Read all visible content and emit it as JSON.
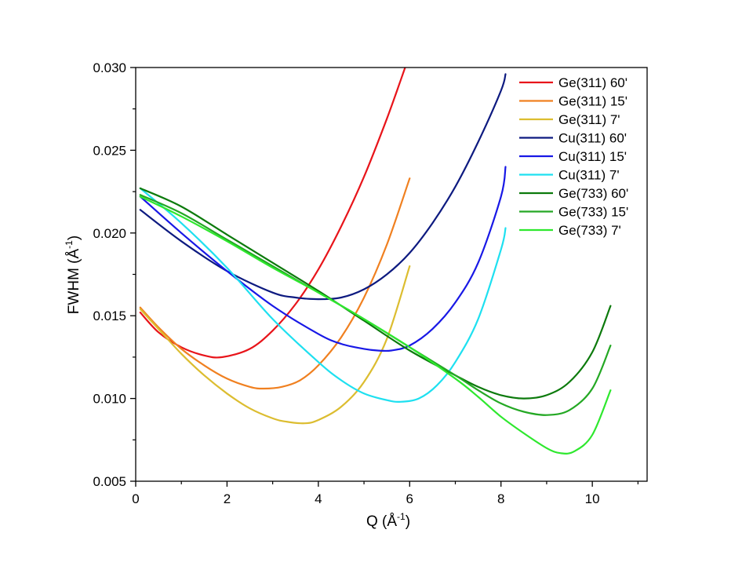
{
  "chart_data": {
    "type": "line",
    "title": "",
    "xlabel": "Q (Å",
    "xlabel_sup": "-1",
    "xlabel_end": ")",
    "ylabel": "FWHM (Å",
    "ylabel_sup": "-1",
    "ylabel_end": ")",
    "xlim": [
      0,
      11.2
    ],
    "ylim": [
      0.005,
      0.03
    ],
    "xticks": [
      0,
      2,
      4,
      6,
      8,
      10
    ],
    "xtick_labels": [
      "0",
      "2",
      "4",
      "6",
      "8",
      "10"
    ],
    "xminor": [
      1,
      3,
      5,
      7,
      9,
      11
    ],
    "yticks": [
      0.005,
      0.01,
      0.015,
      0.02,
      0.025,
      0.03
    ],
    "ytick_labels": [
      "0.005",
      "0.010",
      "0.015",
      "0.020",
      "0.025",
      "0.030"
    ],
    "yminor": [
      0.0075,
      0.0125,
      0.0175,
      0.0225,
      0.0275
    ],
    "grid": false,
    "legend_position": "top-right",
    "series": [
      {
        "name": "Ge(311) 60'",
        "color": "#e8141a",
        "x": [
          0.1,
          0.5,
          1.0,
          1.5,
          1.9,
          2.5,
          3.0,
          3.5,
          4.0,
          4.5,
          5.0,
          5.5,
          5.9
        ],
        "y": [
          0.0152,
          0.014,
          0.0131,
          0.0126,
          0.0125,
          0.013,
          0.0141,
          0.0157,
          0.0178,
          0.0204,
          0.0234,
          0.0269,
          0.03
        ]
      },
      {
        "name": "Ge(311) 15'",
        "color": "#f08020",
        "x": [
          0.1,
          0.5,
          1.0,
          1.5,
          2.0,
          2.5,
          2.8,
          3.2,
          3.6,
          4.0,
          4.5,
          5.0,
          5.5,
          6.0
        ],
        "y": [
          0.0155,
          0.0143,
          0.013,
          0.012,
          0.0112,
          0.0107,
          0.0106,
          0.0107,
          0.0111,
          0.012,
          0.0137,
          0.0161,
          0.0193,
          0.0233
        ]
      },
      {
        "name": "Ge(311) 7'",
        "color": "#dcbd30",
        "x": [
          0.1,
          0.5,
          1.0,
          1.5,
          2.0,
          2.5,
          3.0,
          3.3,
          3.7,
          4.0,
          4.5,
          5.0,
          5.5,
          6.0
        ],
        "y": [
          0.0154,
          0.0142,
          0.0127,
          0.0114,
          0.0103,
          0.0094,
          0.0088,
          0.0086,
          0.0085,
          0.0087,
          0.0095,
          0.011,
          0.0136,
          0.018
        ]
      },
      {
        "name": "Cu(311) 60'",
        "color": "#0d1a80",
        "x": [
          0.1,
          1.0,
          2.0,
          3.0,
          3.5,
          4.0,
          4.5,
          5.0,
          5.5,
          6.0,
          6.5,
          7.0,
          7.5,
          8.0,
          8.1
        ],
        "y": [
          0.0214,
          0.0195,
          0.0177,
          0.0164,
          0.0161,
          0.016,
          0.0161,
          0.0166,
          0.0175,
          0.0188,
          0.0206,
          0.0228,
          0.0255,
          0.0286,
          0.0296
        ]
      },
      {
        "name": "Cu(311) 15'",
        "color": "#1818e6",
        "x": [
          0.1,
          1.0,
          2.0,
          3.0,
          4.0,
          4.5,
          5.0,
          5.3,
          5.6,
          6.0,
          6.5,
          7.0,
          7.5,
          8.0,
          8.1
        ],
        "y": [
          0.0222,
          0.02,
          0.0177,
          0.0156,
          0.0139,
          0.0133,
          0.013,
          0.0129,
          0.0129,
          0.0132,
          0.0142,
          0.0158,
          0.0182,
          0.0222,
          0.024
        ]
      },
      {
        "name": "Cu(311) 7'",
        "color": "#1ee0f0",
        "x": [
          0.1,
          1.0,
          2.0,
          3.0,
          4.0,
          4.5,
          5.0,
          5.5,
          5.8,
          6.2,
          6.6,
          7.0,
          7.5,
          8.0,
          8.1
        ],
        "y": [
          0.0227,
          0.0206,
          0.0179,
          0.0148,
          0.0122,
          0.0111,
          0.0103,
          0.0099,
          0.0098,
          0.01,
          0.0108,
          0.0122,
          0.0148,
          0.019,
          0.0203
        ]
      },
      {
        "name": "Ge(733) 60'",
        "color": "#0c7a0c",
        "x": [
          0.1,
          1.0,
          2.0,
          3.0,
          4.0,
          5.0,
          6.0,
          7.0,
          7.5,
          8.0,
          8.5,
          9.0,
          9.5,
          10.0,
          10.4
        ],
        "y": [
          0.0227,
          0.0216,
          0.0199,
          0.0182,
          0.0165,
          0.0147,
          0.0129,
          0.0114,
          0.0107,
          0.0102,
          0.01,
          0.0102,
          0.011,
          0.0128,
          0.0156
        ]
      },
      {
        "name": "Ge(733) 15'",
        "color": "#24a824",
        "x": [
          0.1,
          1.0,
          2.0,
          3.0,
          4.0,
          5.0,
          6.0,
          7.0,
          7.5,
          8.0,
          8.5,
          9.0,
          9.5,
          10.0,
          10.4
        ],
        "y": [
          0.0223,
          0.0212,
          0.0196,
          0.018,
          0.0164,
          0.0148,
          0.0131,
          0.0114,
          0.0105,
          0.0097,
          0.0092,
          0.009,
          0.0093,
          0.0106,
          0.0132
        ]
      },
      {
        "name": "Ge(733) 7'",
        "color": "#2ee82e",
        "x": [
          0.1,
          1.0,
          2.0,
          3.0,
          4.0,
          5.0,
          6.0,
          7.0,
          7.5,
          8.0,
          8.5,
          9.0,
          9.3,
          9.6,
          10.0,
          10.4
        ],
        "y": [
          0.0222,
          0.021,
          0.0195,
          0.0179,
          0.0164,
          0.0148,
          0.0131,
          0.0112,
          0.0101,
          0.0089,
          0.0079,
          0.007,
          0.0067,
          0.0068,
          0.0078,
          0.0105
        ]
      }
    ]
  }
}
